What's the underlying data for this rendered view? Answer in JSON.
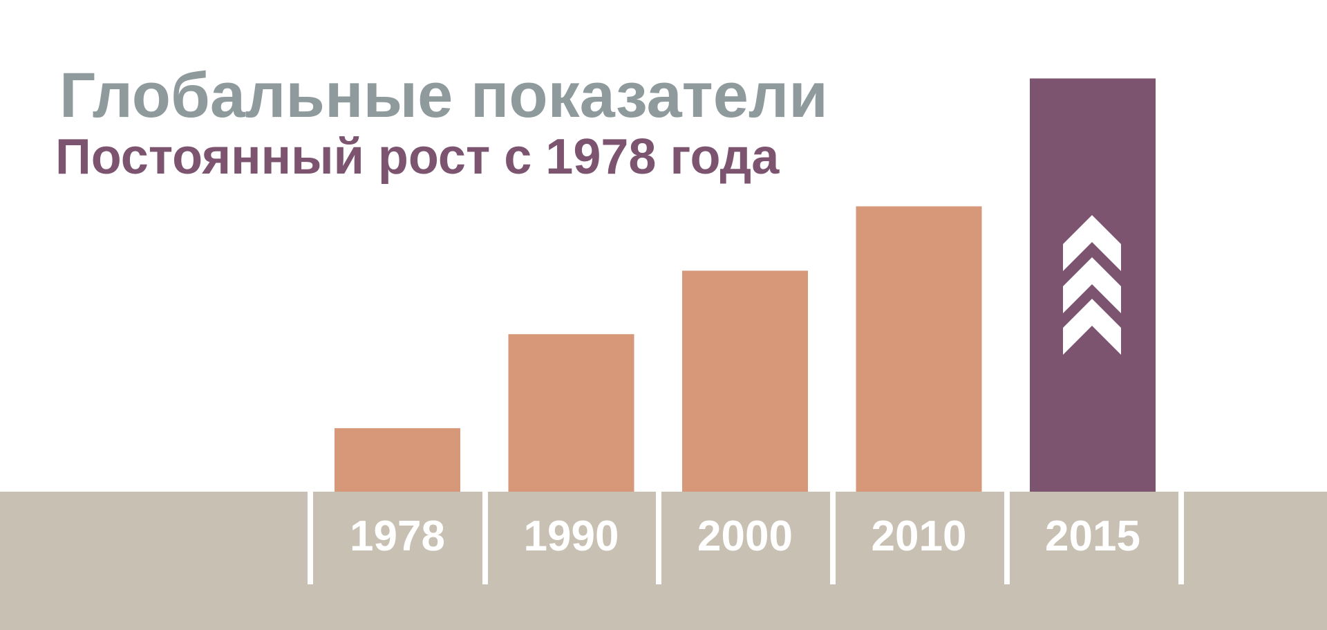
{
  "chart_data": {
    "type": "bar",
    "title": "Глобальные показатели",
    "subtitle": "Постоянный рост с 1978 года",
    "categories": [
      "1978",
      "1990",
      "2000",
      "2010",
      "2015"
    ],
    "values": [
      75,
      186,
      261,
      337,
      488
    ],
    "colors": [
      "#d69878",
      "#d69878",
      "#d69878",
      "#d69878",
      "#7d5470"
    ]
  }
}
